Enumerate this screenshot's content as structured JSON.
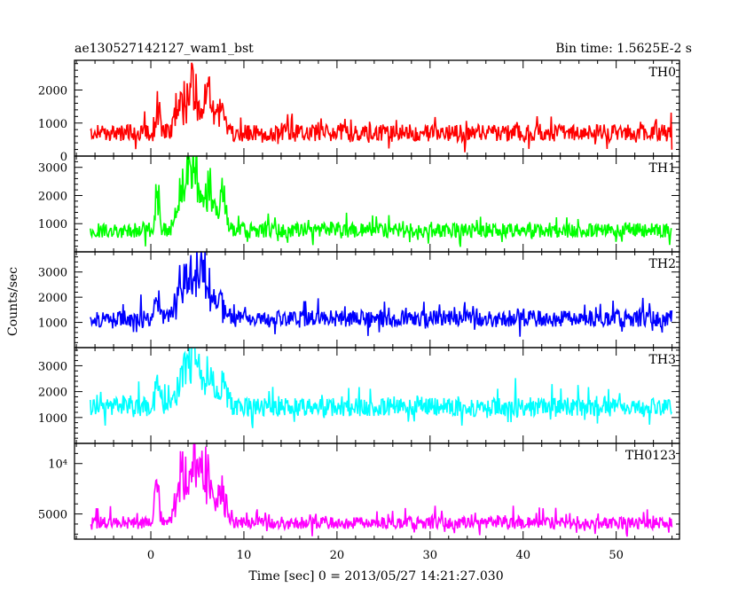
{
  "header": {
    "left_title": "ae130527142127_wam1_bst",
    "right_title": "Bin time: 1.5625E-2 s"
  },
  "axes": {
    "ylabel": "Counts/sec",
    "xlabel": "Time [sec] 0 = 2013/05/27 14:21:27.030"
  },
  "chart_data": [
    {
      "type": "line",
      "name": "TH0",
      "color": "#ff0000",
      "xlim": [
        -8.2,
        56.8
      ],
      "ylim": [
        0,
        2900
      ],
      "yticks": [
        0,
        1000,
        2000
      ],
      "ytick_labels": [
        "0",
        "1000",
        "2000"
      ],
      "xticks": [
        0,
        10,
        20,
        30,
        40,
        50
      ],
      "baseline": 700,
      "noise": 260,
      "spikes": 450,
      "floor": 0,
      "burst": [
        {
          "t": 0.7,
          "a": 700,
          "w": 0.25
        },
        {
          "t": 3.2,
          "a": 900,
          "w": 0.6
        },
        {
          "t": 4.5,
          "a": 1300,
          "w": 0.5
        },
        {
          "t": 6.0,
          "a": 1200,
          "w": 0.5
        },
        {
          "t": 7.6,
          "a": 800,
          "w": 0.4
        }
      ]
    },
    {
      "type": "line",
      "name": "TH1",
      "color": "#00ff00",
      "xlim": [
        -8.2,
        56.8
      ],
      "ylim": [
        0,
        3400
      ],
      "yticks": [
        1000,
        2000,
        3000
      ],
      "ytick_labels": [
        "1000",
        "2000",
        "3000"
      ],
      "xticks": [
        0,
        10,
        20,
        30,
        40,
        50
      ],
      "baseline": 760,
      "noise": 260,
      "spikes": 500,
      "floor": 0,
      "burst": [
        {
          "t": 0.7,
          "a": 1100,
          "w": 0.25
        },
        {
          "t": 3.5,
          "a": 1500,
          "w": 0.6
        },
        {
          "t": 4.7,
          "a": 1800,
          "w": 0.5
        },
        {
          "t": 6.2,
          "a": 1400,
          "w": 0.5
        },
        {
          "t": 7.7,
          "a": 1200,
          "w": 0.4
        }
      ]
    },
    {
      "type": "line",
      "name": "TH2",
      "color": "#0000ff",
      "xlim": [
        -8.2,
        56.8
      ],
      "ylim": [
        0,
        3800
      ],
      "yticks": [
        1000,
        2000,
        3000
      ],
      "ytick_labels": [
        "1000",
        "2000",
        "3000"
      ],
      "xticks": [
        0,
        10,
        20,
        30,
        40,
        50
      ],
      "baseline": 1150,
      "noise": 330,
      "spikes": 700,
      "floor": 0,
      "burst": [
        {
          "t": 0.7,
          "a": 900,
          "w": 0.25
        },
        {
          "t": 3.4,
          "a": 1500,
          "w": 0.6
        },
        {
          "t": 4.8,
          "a": 1900,
          "w": 0.5
        },
        {
          "t": 6.0,
          "a": 1600,
          "w": 0.5
        },
        {
          "t": 7.5,
          "a": 900,
          "w": 0.4
        }
      ]
    },
    {
      "type": "line",
      "name": "TH3",
      "color": "#00ffff",
      "xlim": [
        -8.2,
        56.8
      ],
      "ylim": [
        0,
        3700
      ],
      "yticks": [
        1000,
        2000,
        3000
      ],
      "ytick_labels": [
        "1000",
        "2000",
        "3000"
      ],
      "xticks": [
        0,
        10,
        20,
        30,
        40,
        50
      ],
      "baseline": 1400,
      "noise": 360,
      "spikes": 850,
      "floor": 0,
      "burst": [
        {
          "t": 0.7,
          "a": 800,
          "w": 0.25
        },
        {
          "t": 3.6,
          "a": 1300,
          "w": 0.6
        },
        {
          "t": 4.7,
          "a": 1600,
          "w": 0.5
        },
        {
          "t": 6.2,
          "a": 1500,
          "w": 0.5
        },
        {
          "t": 7.8,
          "a": 900,
          "w": 0.4
        }
      ]
    },
    {
      "type": "line",
      "name": "TH0123",
      "color": "#ff00ff",
      "xlim": [
        -8.2,
        56.8
      ],
      "ylim": [
        2500,
        12000
      ],
      "yticks": [
        5000,
        10000
      ],
      "ytick_labels": [
        "5000",
        "10⁴"
      ],
      "xticks": [
        0,
        10,
        20,
        30,
        40,
        50
      ],
      "baseline": 4100,
      "noise": 600,
      "spikes": 1500,
      "floor": 2500,
      "burst": [
        {
          "t": 0.7,
          "a": 3500,
          "w": 0.25
        },
        {
          "t": 3.4,
          "a": 4500,
          "w": 0.6
        },
        {
          "t": 4.7,
          "a": 6000,
          "w": 0.5
        },
        {
          "t": 6.0,
          "a": 5000,
          "w": 0.5
        },
        {
          "t": 7.6,
          "a": 3500,
          "w": 0.4
        }
      ]
    }
  ]
}
